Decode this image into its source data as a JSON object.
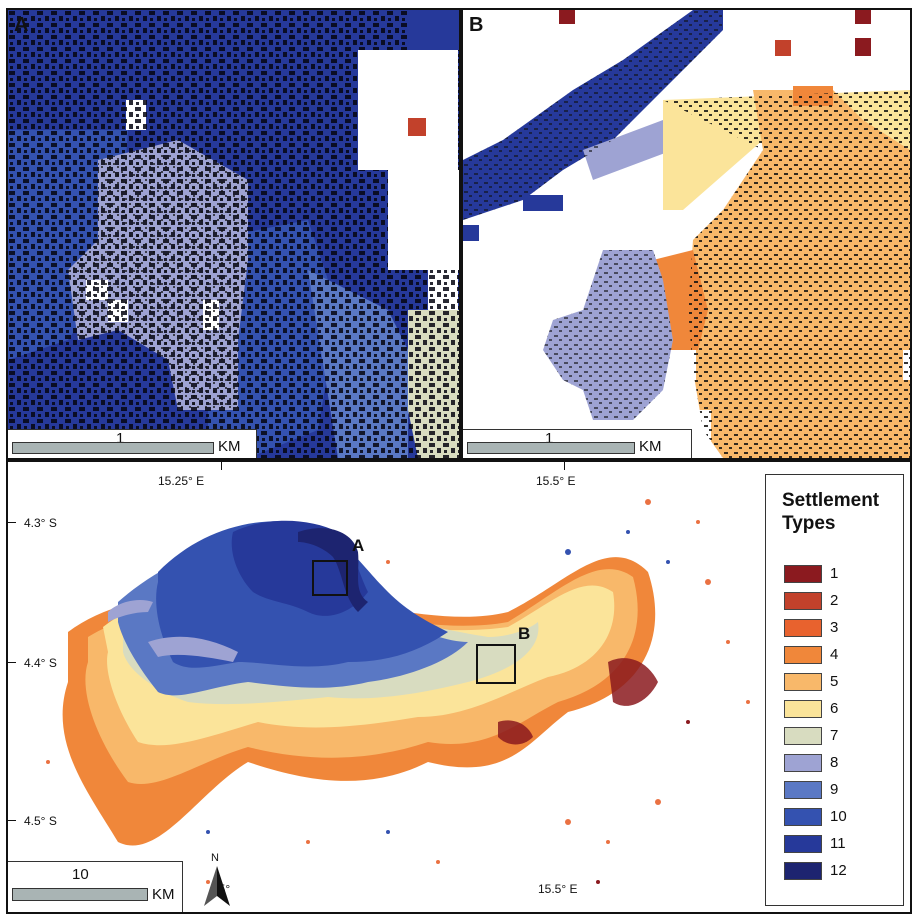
{
  "panels": {
    "a": {
      "letter": "A",
      "scale_value": "1",
      "scale_unit": "KM"
    },
    "b": {
      "letter": "B",
      "scale_value": "1",
      "scale_unit": "KM"
    }
  },
  "main_map": {
    "coords": {
      "lon_1": "15.25° E",
      "lon_2": "15.5° E",
      "lat_1": "4.3° S",
      "lat_2": "4.4° S",
      "lat_3": "4.5° S",
      "lon_bottom_partial": "25°",
      "lon_bottom_2": "15.5° E"
    },
    "inset_labels": {
      "a": "A",
      "b": "B"
    },
    "scale_value": "10",
    "scale_unit": "KM",
    "north_label": "N"
  },
  "legend": {
    "title_line1": "Settlement",
    "title_line2": "Types",
    "items": [
      {
        "label": "1",
        "color": "#8b1a1f"
      },
      {
        "label": "2",
        "color": "#c2412b"
      },
      {
        "label": "3",
        "color": "#e8622e"
      },
      {
        "label": "4",
        "color": "#f0873a"
      },
      {
        "label": "5",
        "color": "#f8b86a"
      },
      {
        "label": "6",
        "color": "#fbe49a"
      },
      {
        "label": "7",
        "color": "#d8dcc0"
      },
      {
        "label": "8",
        "color": "#9ea3d3"
      },
      {
        "label": "9",
        "color": "#5a78c4"
      },
      {
        "label": "10",
        "color": "#3452b0"
      },
      {
        "label": "11",
        "color": "#26399a"
      },
      {
        "label": "12",
        "color": "#1d2470"
      }
    ]
  }
}
